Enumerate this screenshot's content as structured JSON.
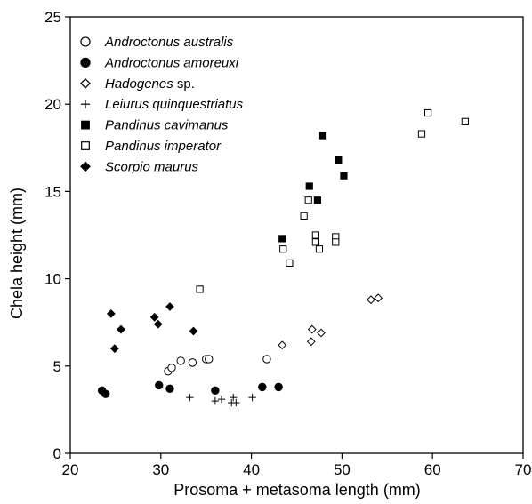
{
  "chart_data": {
    "type": "scatter",
    "xlabel": "Prosoma + metasoma length (mm)",
    "ylabel": "Chela height (mm)",
    "xlim": [
      20,
      70
    ],
    "ylim": [
      0,
      25
    ],
    "xticks": [
      "20",
      "30",
      "40",
      "50",
      "60",
      "70"
    ],
    "yticks": [
      "0",
      "5",
      "10",
      "15",
      "20",
      "25"
    ],
    "legend_position": "top-left",
    "series": [
      {
        "name": "Androctonus australis",
        "name_italic": "Androctonus australis",
        "name_suffix": "",
        "marker": "circle-open",
        "points": [
          [
            30.8,
            4.7
          ],
          [
            31.2,
            4.9
          ],
          [
            32.2,
            5.3
          ],
          [
            33.5,
            5.2
          ],
          [
            35.0,
            5.4
          ],
          [
            35.3,
            5.4
          ],
          [
            41.7,
            5.4
          ]
        ]
      },
      {
        "name": "Androctonus amoreuxi",
        "name_italic": "Androctonus amoreuxi",
        "name_suffix": "",
        "marker": "circle-filled",
        "points": [
          [
            23.5,
            3.6
          ],
          [
            23.9,
            3.4
          ],
          [
            29.8,
            3.9
          ],
          [
            31.0,
            3.7
          ],
          [
            36.0,
            3.6
          ],
          [
            41.2,
            3.8
          ],
          [
            43.0,
            3.8
          ]
        ]
      },
      {
        "name": "Hadogenes sp.",
        "name_italic": "Hadogenes",
        "name_suffix": " sp.",
        "marker": "diamond-open",
        "points": [
          [
            43.4,
            6.2
          ],
          [
            46.7,
            7.1
          ],
          [
            47.7,
            6.9
          ],
          [
            46.6,
            6.4
          ],
          [
            53.2,
            8.8
          ],
          [
            54.0,
            8.9
          ]
        ]
      },
      {
        "name": "Leiurus quinquestriatus",
        "name_italic": "Leiurus quinquestriatus",
        "name_suffix": "",
        "marker": "plus",
        "points": [
          [
            33.2,
            3.2
          ],
          [
            36.0,
            3.0
          ],
          [
            36.7,
            3.1
          ],
          [
            37.8,
            2.9
          ],
          [
            38.3,
            2.9
          ],
          [
            38.0,
            3.2
          ],
          [
            40.1,
            3.2
          ]
        ]
      },
      {
        "name": "Pandinus cavimanus",
        "name_italic": "Pandinus cavimanus",
        "name_suffix": "",
        "marker": "square-filled",
        "points": [
          [
            43.4,
            12.3
          ],
          [
            46.4,
            15.3
          ],
          [
            47.3,
            14.5
          ],
          [
            47.9,
            18.2
          ],
          [
            49.6,
            16.8
          ],
          [
            50.2,
            15.9
          ]
        ]
      },
      {
        "name": "Pandinus imperator",
        "name_italic": "Pandinus imperator",
        "name_suffix": "",
        "marker": "square-open",
        "points": [
          [
            34.3,
            9.4
          ],
          [
            43.5,
            11.7
          ],
          [
            44.2,
            10.9
          ],
          [
            45.8,
            13.6
          ],
          [
            46.3,
            14.5
          ],
          [
            47.1,
            12.5
          ],
          [
            47.1,
            12.1
          ],
          [
            47.5,
            11.7
          ],
          [
            49.3,
            12.4
          ],
          [
            49.3,
            12.1
          ],
          [
            58.8,
            18.3
          ],
          [
            59.5,
            19.5
          ],
          [
            63.6,
            19.0
          ]
        ]
      },
      {
        "name": "Scorpio maurus",
        "name_italic": "Scorpio maurus",
        "name_suffix": "",
        "marker": "diamond-filled",
        "points": [
          [
            24.5,
            8.0
          ],
          [
            24.9,
            6.0
          ],
          [
            25.6,
            7.1
          ],
          [
            29.3,
            7.8
          ],
          [
            29.7,
            7.4
          ],
          [
            31.0,
            8.4
          ],
          [
            33.6,
            7.0
          ]
        ]
      }
    ]
  }
}
